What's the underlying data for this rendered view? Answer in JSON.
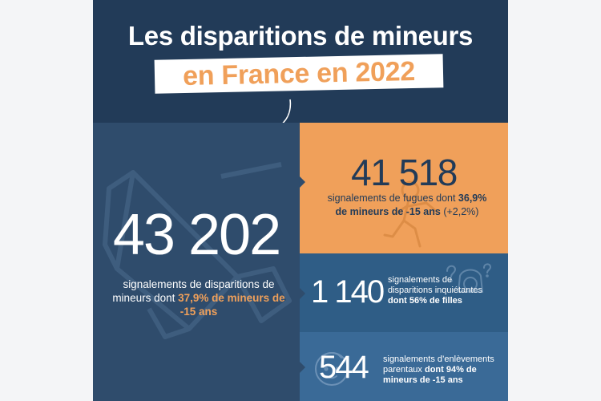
{
  "header": {
    "title_line1": "Les disparitions de mineurs",
    "title_line2": "en France en 2022"
  },
  "main_stat": {
    "number": "43 202",
    "text_before": "signalements de disparitions de mineurs dont ",
    "highlight": "37,9% de mineurs de -15 ans"
  },
  "fugues": {
    "number": "41 518",
    "text_before": "signalements de fugues dont ",
    "highlight1": "36,9%",
    "highlight2": "de mineurs de -15 ans",
    "text_after": " (+2,2%)"
  },
  "inquietantes": {
    "number": "1 140",
    "text_before": "signalements de disparitions inquiétantes ",
    "highlight": "dont 56% de filles"
  },
  "enlevements": {
    "number": "544",
    "text_before": "signalements d’enlèvements parentaux ",
    "highlight": "dont 94% de mineurs de -15 ans"
  },
  "colors": {
    "dark_navy": "#223b58",
    "navy": "#2f4c6c",
    "orange": "#f0a05a",
    "mid_blue": "#2f5d86",
    "light_blue": "#3a6a97"
  },
  "icons": [
    "megaphone-icon",
    "running-child-icon",
    "question-child-icon",
    "child-face-icon",
    "curved-arrow-icon"
  ]
}
